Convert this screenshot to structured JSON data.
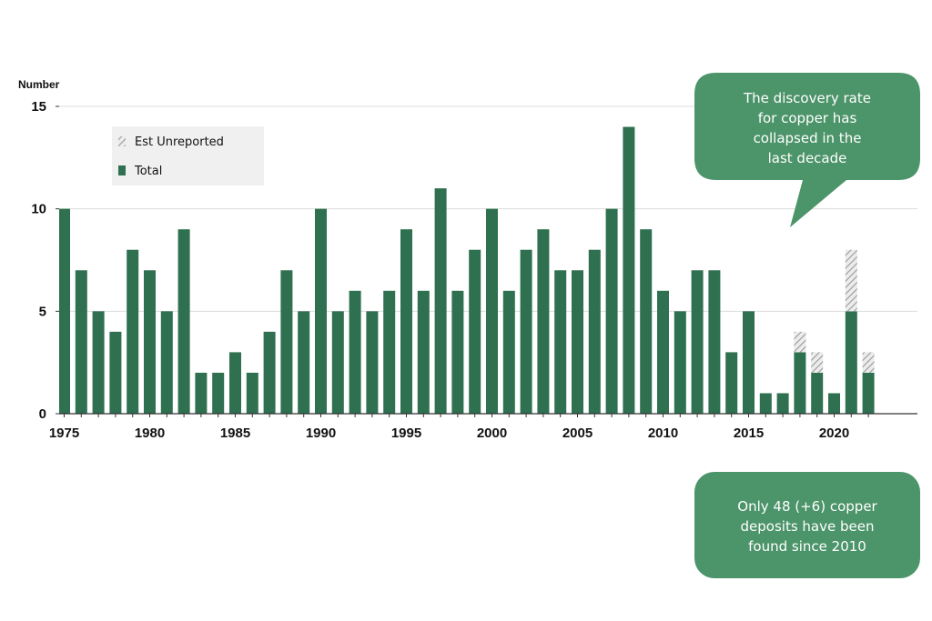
{
  "chart_data": {
    "type": "bar",
    "ylabel": "Number",
    "xlabel": "",
    "title": "",
    "ylim": [
      0,
      15
    ],
    "y_ticks": [
      0,
      5,
      10,
      15
    ],
    "x_ticks": [
      1975,
      1980,
      1985,
      1990,
      1995,
      2000,
      2005,
      2010,
      2015,
      2020
    ],
    "grid": "horizontal",
    "legend_position": "top-left",
    "colors": {
      "total": "#2e7050",
      "unreported": "#c9c9c9",
      "callout": "#4c9469"
    },
    "categories": [
      1975,
      1976,
      1977,
      1978,
      1979,
      1980,
      1981,
      1982,
      1983,
      1984,
      1985,
      1986,
      1987,
      1988,
      1989,
      1990,
      1991,
      1992,
      1993,
      1994,
      1995,
      1996,
      1997,
      1998,
      1999,
      2000,
      2001,
      2002,
      2003,
      2004,
      2005,
      2006,
      2007,
      2008,
      2009,
      2010,
      2011,
      2012,
      2013,
      2014,
      2015,
      2016,
      2017,
      2018,
      2019,
      2020,
      2021,
      2022
    ],
    "series": [
      {
        "name": "Total",
        "values": [
          10,
          7,
          5,
          4,
          8,
          7,
          5,
          9,
          2,
          2,
          3,
          2,
          4,
          7,
          5,
          10,
          5,
          6,
          5,
          6,
          9,
          6,
          11,
          6,
          8,
          10,
          6,
          8,
          9,
          7,
          7,
          8,
          10,
          14,
          9,
          6,
          5,
          7,
          7,
          3,
          5,
          1,
          1,
          3,
          2,
          1,
          5,
          2
        ]
      },
      {
        "name": "Est Unreported",
        "values": [
          0,
          0,
          0,
          0,
          0,
          0,
          0,
          0,
          0,
          0,
          0,
          0,
          0,
          0,
          0,
          0,
          0,
          0,
          0,
          0,
          0,
          0,
          0,
          0,
          0,
          0,
          0,
          0,
          0,
          0,
          0,
          0,
          0,
          0,
          0,
          0,
          0,
          0,
          0,
          0,
          0,
          0,
          0,
          1,
          1,
          0,
          3,
          1
        ]
      }
    ],
    "annotations": [
      "The discovery rate for copper has collapsed in the last decade",
      "Only 48 (+6) copper deposits have been found since 2010"
    ]
  },
  "callouts": [
    {
      "lines": [
        "The discovery rate",
        "for copper has",
        "collapsed in the",
        "last decade"
      ]
    },
    {
      "lines": [
        "Only 48 (+6) copper",
        "deposits have been",
        "found since 2010"
      ]
    }
  ]
}
